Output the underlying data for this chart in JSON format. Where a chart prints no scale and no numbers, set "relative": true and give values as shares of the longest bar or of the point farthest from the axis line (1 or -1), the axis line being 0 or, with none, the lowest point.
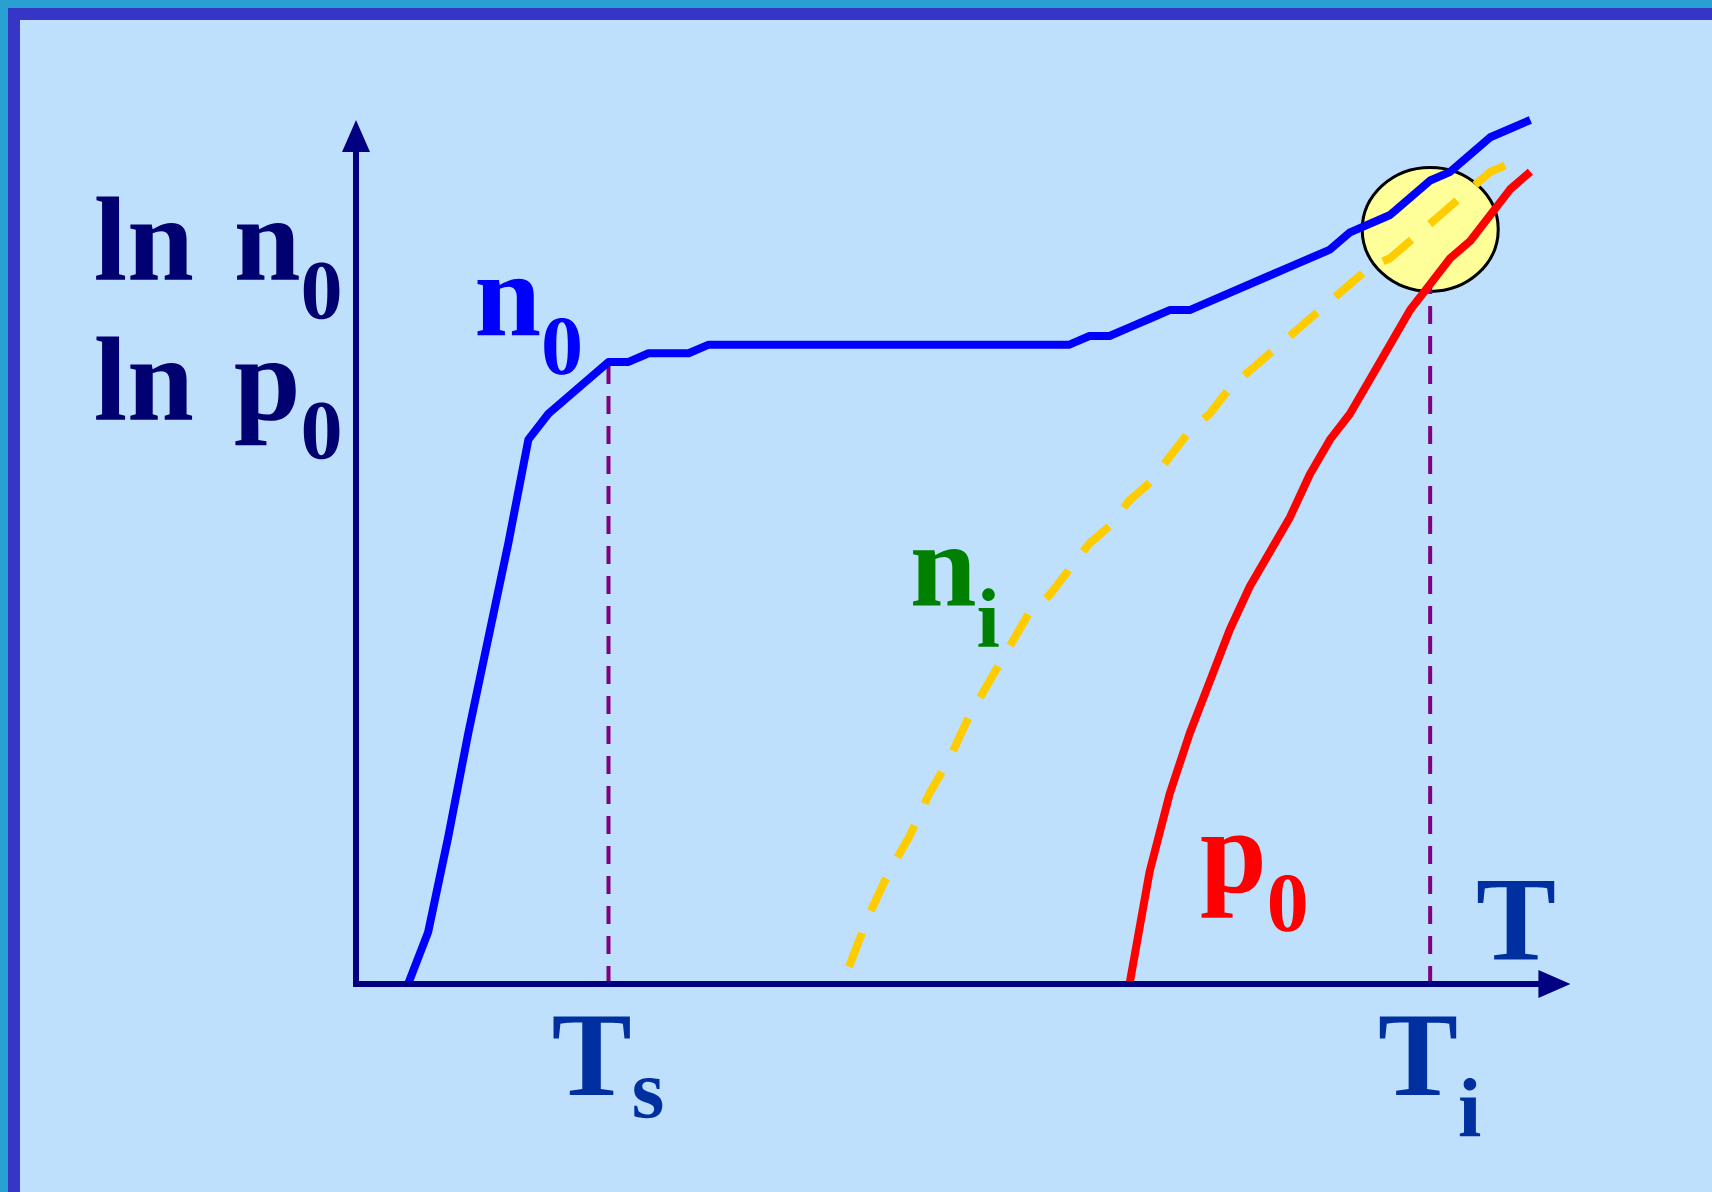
{
  "chart_data": {
    "type": "line",
    "relative": true,
    "xlabel": "T",
    "ylabel": "ln n$_{0}$ ln p$_{0}$",
    "categories": [
      null,
      null,
      null,
      null,
      null,
      null,
      null,
      null,
      null,
      null,
      "T$_{s}$",
      null,
      null,
      null,
      null,
      null,
      null,
      null,
      null,
      null,
      null,
      null,
      null,
      null,
      null,
      null,
      null,
      null,
      null,
      null,
      null,
      null,
      null,
      null,
      null,
      null,
      null,
      null,
      null,
      null,
      null,
      null,
      null,
      null,
      null,
      null,
      null,
      null,
      null,
      null,
      null,
      "T$_{i}$",
      null,
      null,
      null,
      null,
      null
    ],
    "series": [
      {
        "name": "n$_{0}$",
        "color": "#0000ff",
        "values": [
          0,
          0.06,
          0.17,
          0.29,
          0.4,
          0.51,
          0.63,
          0.66,
          0.68,
          0.7,
          0.72,
          0.72,
          0.73,
          0.73,
          0.73,
          0.74,
          0.74,
          0.74,
          0.74,
          0.74,
          0.74,
          0.74,
          0.74,
          0.74,
          0.74,
          0.74,
          0.74,
          0.74,
          0.74,
          0.74,
          0.74,
          0.74,
          0.74,
          0.74,
          0.75,
          0.75,
          0.76,
          0.77,
          0.78,
          0.78,
          0.79,
          0.8,
          0.81,
          0.82,
          0.83,
          0.84,
          0.85,
          0.87,
          0.88,
          0.89,
          0.91,
          0.93,
          0.94,
          0.96,
          0.98,
          0.99,
          1
        ]
      },
      {
        "name": "n$_{i}$",
        "color": "#ffcc00",
        "line_style": "dashed",
        "values": [
          null,
          null,
          null,
          null,
          null,
          null,
          null,
          null,
          null,
          null,
          null,
          null,
          null,
          null,
          null,
          null,
          null,
          null,
          null,
          null,
          null,
          null,
          0.02,
          0.08,
          0.13,
          0.17,
          0.22,
          0.26,
          0.31,
          0.35,
          0.39,
          0.43,
          0.45,
          0.48,
          0.51,
          0.53,
          0.56,
          0.58,
          0.61,
          0.64,
          0.66,
          0.69,
          0.71,
          0.73,
          0.75,
          0.77,
          0.79,
          0.81,
          0.83,
          0.84,
          0.86,
          0.88,
          0.9,
          0.92,
          0.94,
          0.95,
          null
        ]
      },
      {
        "name": "p$_{0}$",
        "color": "#ff0000",
        "values": [
          null,
          null,
          null,
          null,
          null,
          null,
          null,
          null,
          null,
          null,
          null,
          null,
          null,
          null,
          null,
          null,
          null,
          null,
          null,
          null,
          null,
          null,
          null,
          null,
          null,
          null,
          null,
          null,
          null,
          null,
          null,
          null,
          null,
          null,
          null,
          null,
          0,
          0.13,
          0.22,
          0.29,
          0.35,
          0.41,
          0.46,
          0.5,
          0.54,
          0.59,
          0.63,
          0.66,
          0.7,
          0.74,
          0.78,
          0.81,
          0.84,
          0.86,
          0.89,
          0.92,
          0.94
        ]
      }
    ],
    "ref_lines": [
      {
        "axis": "x",
        "value": "T$_{s}$",
        "color": "#800080",
        "line_style": "dashed"
      },
      {
        "axis": "x",
        "value": "T$_{i}$",
        "color": "#800080",
        "line_style": "dashed"
      }
    ]
  }
}
